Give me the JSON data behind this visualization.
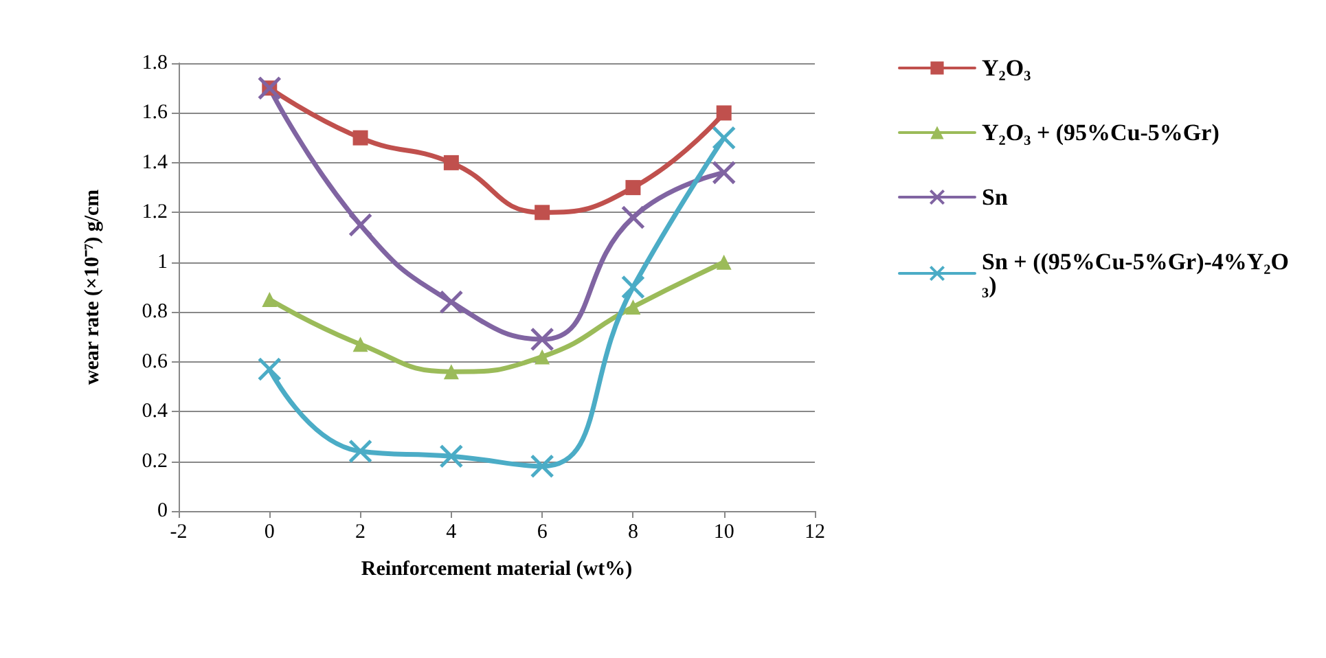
{
  "chart_data": {
    "type": "line",
    "xlabel": "Reinforcement material (wt%)",
    "ylabel": "wear rate (×10⁻⁷) g/cm",
    "x": [
      0,
      2,
      4,
      6,
      8,
      10
    ],
    "xlim": [
      -2,
      12
    ],
    "xticks": [
      -2,
      0,
      2,
      4,
      6,
      8,
      10,
      12
    ],
    "ylim": [
      0,
      1.8
    ],
    "yticks": [
      0,
      0.2,
      0.4,
      0.6,
      0.8,
      1,
      1.2,
      1.4,
      1.6,
      1.8
    ],
    "grid": "y",
    "legend": "right",
    "series": [
      {
        "name": "Y₂O₃",
        "color": "#c0504d",
        "marker": "square",
        "values": [
          1.7,
          1.5,
          1.4,
          1.2,
          1.3,
          1.6
        ]
      },
      {
        "name": "Y₂O₃ + (95%Cu-5%Gr)",
        "color": "#9bbb59",
        "marker": "triangle",
        "values": [
          0.85,
          0.67,
          0.56,
          0.62,
          0.82,
          1.0
        ]
      },
      {
        "name": "Sn",
        "color": "#8064a2",
        "marker": "cross",
        "values": [
          1.7,
          1.15,
          0.84,
          0.69,
          1.18,
          1.36
        ]
      },
      {
        "name": "Sn + ((95%Cu-5%Gr)-4%Y₂O₃)",
        "color": "#4bacc6",
        "marker": "cross",
        "values": [
          0.57,
          0.24,
          0.22,
          0.18,
          0.9,
          1.5
        ]
      }
    ]
  }
}
